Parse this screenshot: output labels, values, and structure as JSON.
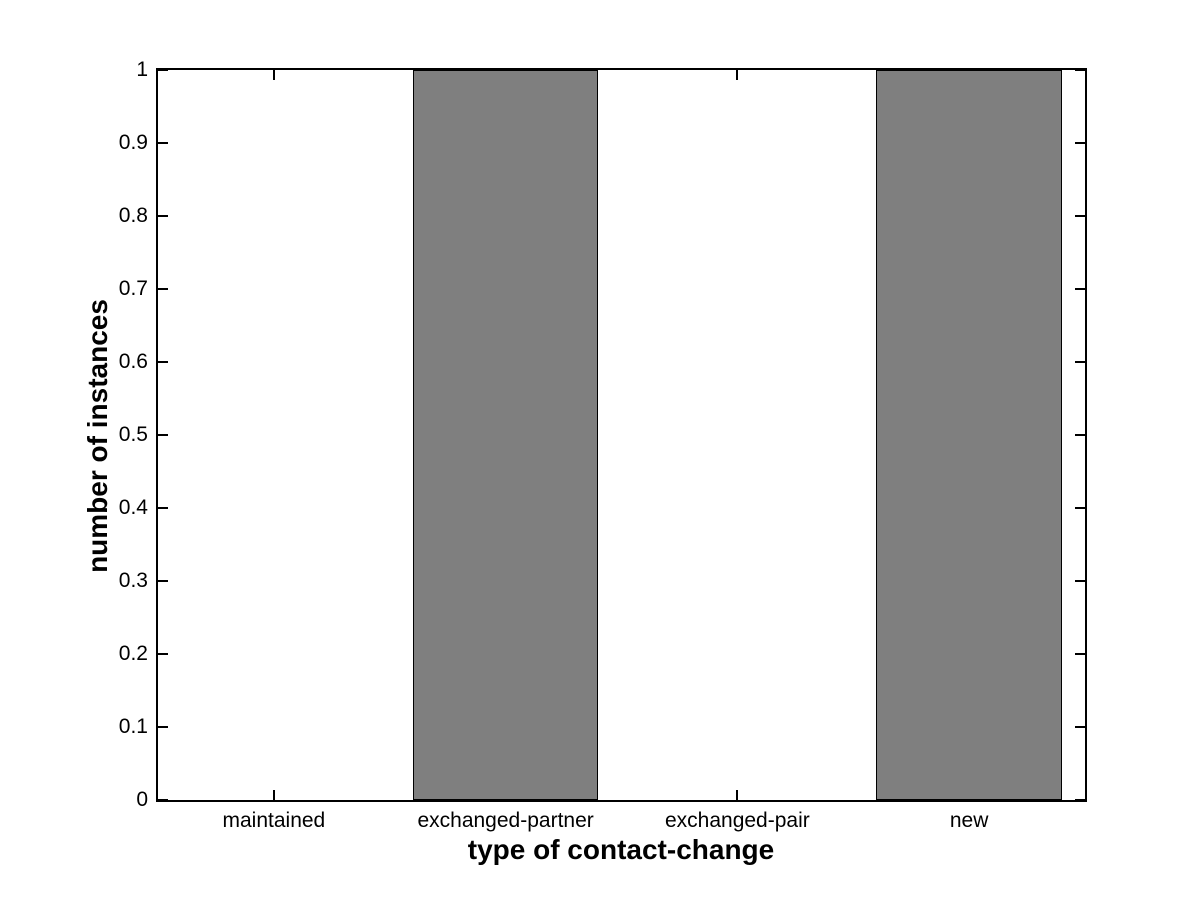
{
  "chart_data": {
    "type": "bar",
    "title": "",
    "xlabel": "type of contact-change",
    "ylabel": "number of instances",
    "categories": [
      "maintained",
      "exchanged-partner",
      "exchanged-pair",
      "new"
    ],
    "values": [
      0,
      1,
      0,
      1
    ],
    "ylim": [
      0,
      1
    ],
    "yticks": [
      0,
      0.1,
      0.2,
      0.3,
      0.4,
      0.5,
      0.6,
      0.7,
      0.8,
      0.9,
      1
    ],
    "ytick_labels": [
      "0",
      "0.1",
      "0.2",
      "0.3",
      "0.4",
      "0.5",
      "0.6",
      "0.7",
      "0.8",
      "0.9",
      "1"
    ],
    "bar_width_fraction": 0.8,
    "bar_color": "#7f7f7f",
    "bar_edge_color": "#000000",
    "axis_color": "#000000",
    "background_color": "#ffffff",
    "grid": false,
    "legend": null,
    "tick_direction": "in",
    "box": true
  }
}
